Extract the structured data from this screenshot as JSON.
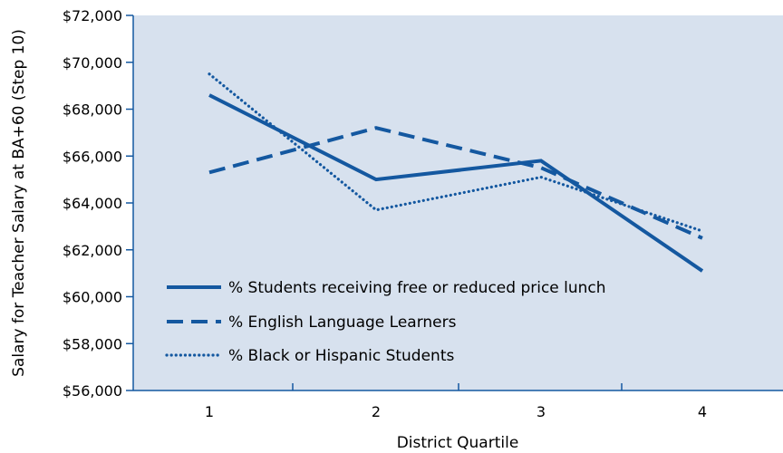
{
  "chart_data": {
    "type": "line",
    "xlabel": "District Quartile",
    "ylabel": "Salary for Teacher Salary at BA+60 (Step 10)",
    "categories": [
      "1",
      "2",
      "3",
      "4"
    ],
    "ylim": [
      56000,
      72000
    ],
    "yticks": [
      "$56,000",
      "$58,000",
      "$60,000",
      "$62,000",
      "$64,000",
      "$66,000",
      "$68,000",
      "$70,000",
      "$72,000"
    ],
    "ytick_values": [
      56000,
      58000,
      60000,
      62000,
      64000,
      66000,
      68000,
      70000,
      72000
    ],
    "grid": false,
    "legend_position": "bottom-left",
    "plot_background": "#d7e1ee",
    "line_color": "#1458a0",
    "series": [
      {
        "name": "% Students receiving free or reduced price lunch",
        "style": "solid",
        "values": [
          68600,
          65000,
          65800,
          61100
        ]
      },
      {
        "name": "% English Language Learners",
        "style": "dashed",
        "values": [
          65300,
          67200,
          65500,
          62500
        ]
      },
      {
        "name": "% Black or Hispanic Students",
        "style": "dotted",
        "values": [
          69500,
          63700,
          65100,
          62800
        ]
      }
    ]
  }
}
